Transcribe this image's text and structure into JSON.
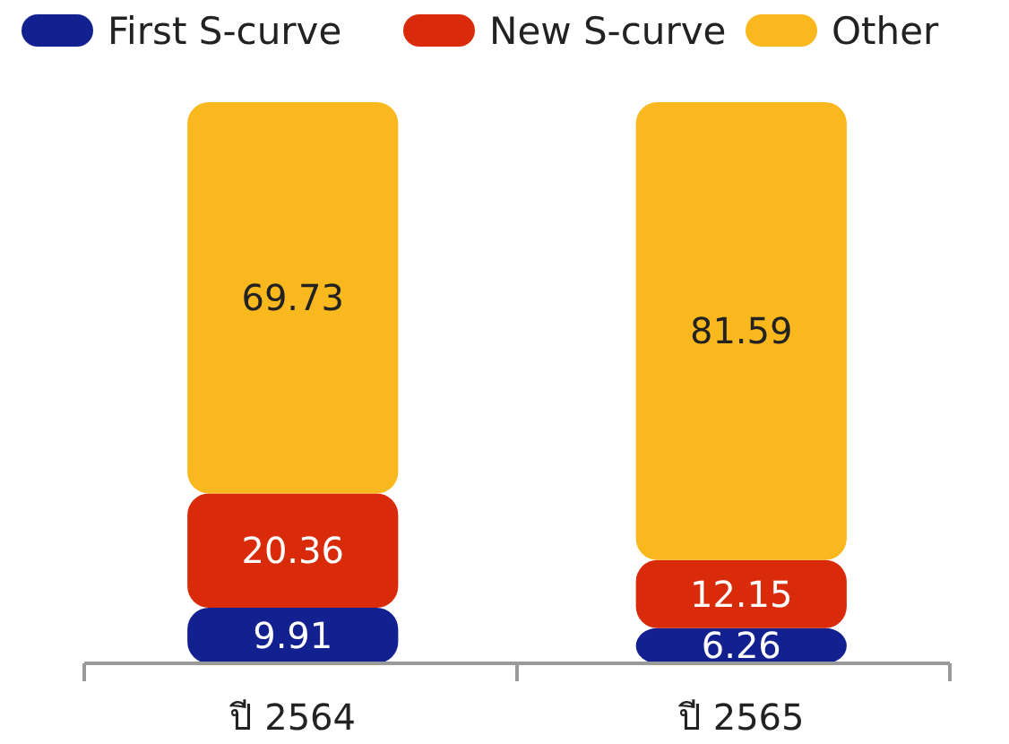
{
  "chart_data": {
    "type": "bar",
    "stacked": true,
    "data_labels": true,
    "legend": "top",
    "categories": [
      "ปี 2564",
      "ปี 2565"
    ],
    "series": [
      {
        "name": "First S-curve",
        "color": "#13208f",
        "values": [
          9.91,
          6.26
        ]
      },
      {
        "name": "New S-curve",
        "color": "#d92b0a",
        "values": [
          20.36,
          12.15
        ]
      },
      {
        "name": "Other",
        "color": "#f9b81d",
        "values": [
          69.73,
          81.59
        ]
      }
    ]
  }
}
